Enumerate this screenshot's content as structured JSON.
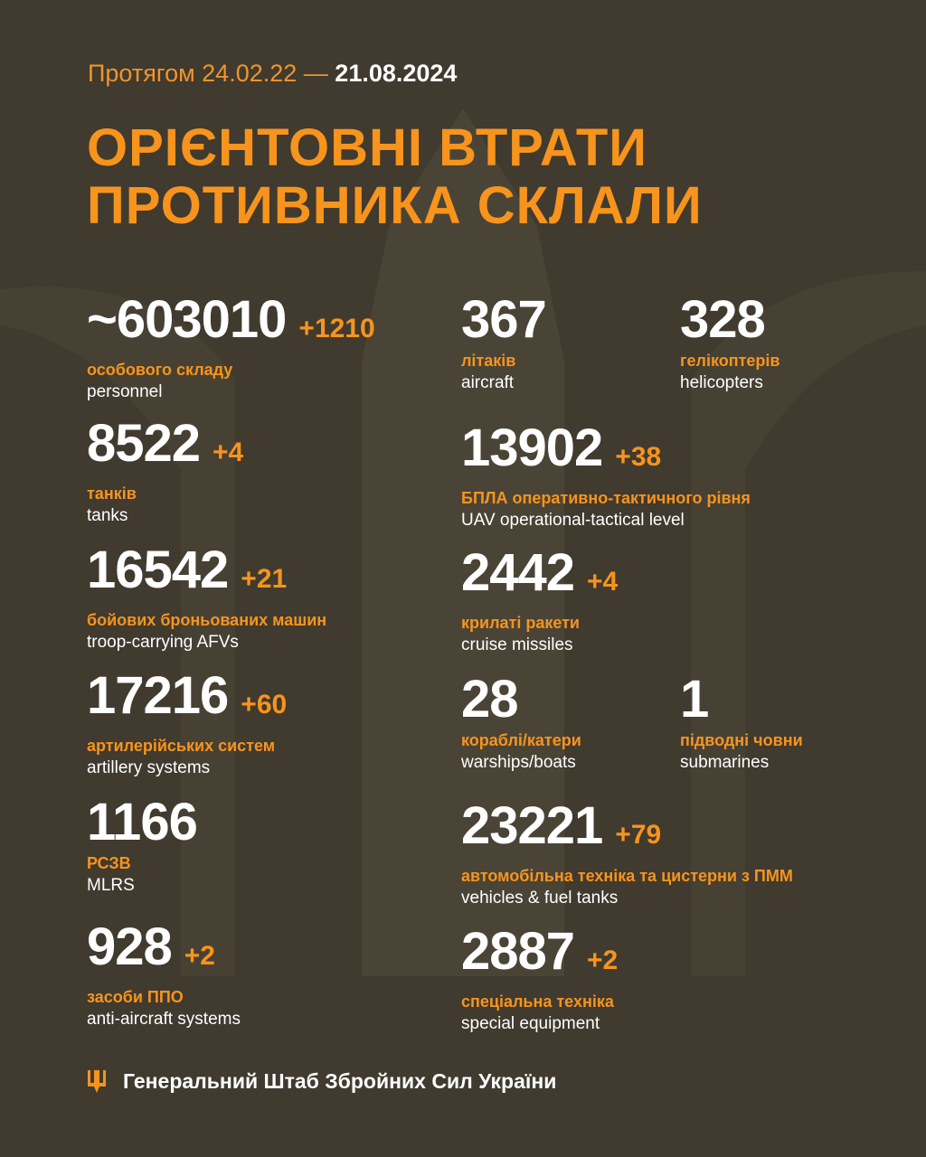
{
  "header": {
    "period_prefix": "Протягом 24.02.22 —",
    "period_end": "21.08.2024",
    "title_line1": "ОРІЄНТОВНІ ВТРАТИ",
    "title_line2": "ПРОТИВНИКА СКЛАЛИ"
  },
  "stats": [
    {
      "value": "~603010",
      "delta": "+1210",
      "ua": "особового складу",
      "en": "personnel"
    },
    {
      "value": "367",
      "delta": "",
      "ua": "літаків",
      "en": "aircraft"
    },
    {
      "value": "328",
      "delta": "",
      "ua": "гелікоптерів",
      "en": "helicopters"
    },
    {
      "value": "8522",
      "delta": "+4",
      "ua": "танків",
      "en": "tanks"
    },
    {
      "value": "13902",
      "delta": "+38",
      "ua": "БПЛА оперативно-тактичного рівня",
      "en": "UAV operational-tactical level"
    },
    {
      "value": "16542",
      "delta": "+21",
      "ua": "бойових броньованих машин",
      "en": "troop-carrying AFVs"
    },
    {
      "value": "2442",
      "delta": "+4",
      "ua": "крилаті ракети",
      "en": "cruise missiles"
    },
    {
      "value": "17216",
      "delta": "+60",
      "ua": "артилерійських систем",
      "en": "artillery systems"
    },
    {
      "value": "28",
      "delta": "",
      "ua": "кораблі/катери",
      "en": "warships/boats"
    },
    {
      "value": "1",
      "delta": "",
      "ua": "підводні човни",
      "en": "submarines"
    },
    {
      "value": "1166",
      "delta": "",
      "ua": "РСЗВ",
      "en": "MLRS"
    },
    {
      "value": "23221",
      "delta": "+79",
      "ua": "автомобільна техніка та цистерни з ПММ",
      "en": "vehicles & fuel tanks"
    },
    {
      "value": "928",
      "delta": "+2",
      "ua": "засоби ППО",
      "en": "anti-aircraft systems"
    },
    {
      "value": "2887",
      "delta": "+2",
      "ua": "спеціальна техніка",
      "en": "special equipment"
    }
  ],
  "footer": {
    "text": "Генеральний Штаб Збройних Сил України",
    "icon": "trident-icon"
  },
  "colors": {
    "background": "#403a2f",
    "accent": "#f7941d",
    "text": "#ffffff"
  }
}
